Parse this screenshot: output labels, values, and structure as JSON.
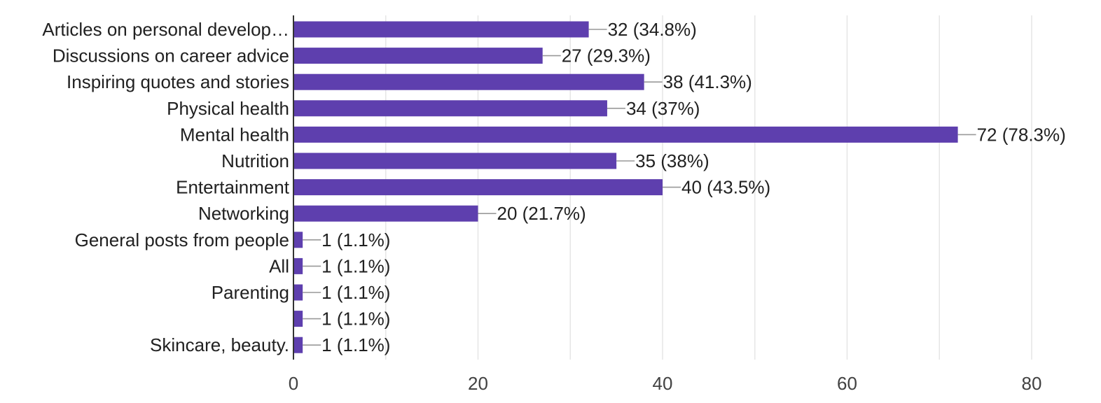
{
  "chart_data": {
    "type": "bar",
    "orientation": "horizontal",
    "categories": [
      "Articles on personal develop…",
      "Discussions on career advice",
      "Inspiring quotes and stories",
      "Physical health",
      "Mental health",
      "Nutrition",
      "Entertainment",
      "Networking",
      "General posts from people",
      "All",
      "Parenting",
      "",
      "Skincare, beauty."
    ],
    "values": [
      32,
      27,
      38,
      34,
      72,
      35,
      40,
      20,
      1,
      1,
      1,
      1,
      1
    ],
    "data_labels": [
      "32 (34.8%)",
      "27 (29.3%)",
      "38 (41.3%)",
      "34 (37%)",
      "72 (78.3%)",
      "35 (38%)",
      "40 (43.5%)",
      "20 (21.7%)",
      "1 (1.1%)",
      "1 (1.1%)",
      "1 (1.1%)",
      "1 (1.1%)",
      "1 (1.1%)"
    ],
    "xlim": [
      0,
      80
    ],
    "x_ticks": [
      0,
      20,
      40,
      60,
      80
    ],
    "x_tick_labels": [
      "0",
      "20",
      "40",
      "60",
      "80"
    ],
    "grid": true,
    "grid_minor_step": 10,
    "bar_color": "#5e3fae",
    "title": "",
    "xlabel": "",
    "ylabel": ""
  }
}
